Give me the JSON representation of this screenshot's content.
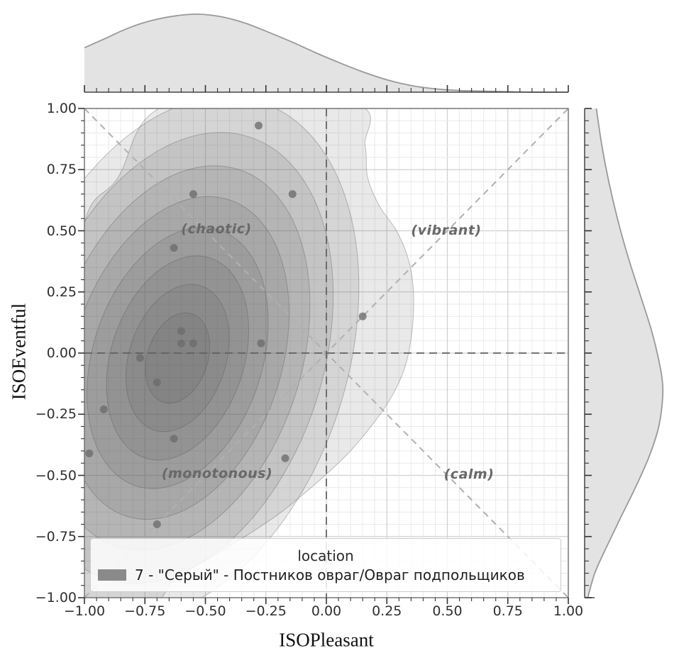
{
  "figure": {
    "x_axis": {
      "label": "ISOPleasant",
      "tick_labels": [
        "−1.00",
        "−0.75",
        "−0.50",
        "−0.25",
        "0.00",
        "0.25",
        "0.50",
        "0.75",
        "1.00"
      ],
      "tick_values": [
        -1,
        -0.75,
        -0.5,
        -0.25,
        0,
        0.25,
        0.5,
        0.75,
        1
      ],
      "range": [
        -1,
        1
      ]
    },
    "y_axis": {
      "label": "ISOEventful",
      "tick_labels": [
        "−1.00",
        "−0.75",
        "−0.50",
        "−0.25",
        "0.00",
        "0.25",
        "0.50",
        "0.75",
        "1.00"
      ],
      "tick_values": [
        -1,
        -0.75,
        -0.5,
        -0.25,
        0,
        0.25,
        0.5,
        0.75,
        1
      ],
      "range": [
        -1,
        1
      ]
    },
    "quadrant_labels": {
      "top_left": "(chaotic)",
      "top_right": "(vibrant)",
      "bottom_left": "(monotonous)",
      "bottom_right": "(calm)"
    },
    "legend": {
      "title": "location",
      "entries": [
        {
          "label": "7 - \"Серый\" - Постников овраг/Овраг подпольщиков",
          "swatch_color": "#8a8a8a"
        }
      ]
    }
  },
  "chart_data": {
    "type": "scatter",
    "subtype": "joint-kde-density-with-marginals",
    "title": "",
    "xlabel": "ISOPleasant",
    "ylabel": "ISOEventful",
    "xlim": [
      -1,
      1
    ],
    "ylim": [
      -1,
      1
    ],
    "grid": "major and minor (0.25 / 0.05 steps)",
    "legend_position": "bottom-center inside axes",
    "points": [
      [
        -0.28,
        0.93
      ],
      [
        -0.55,
        0.65
      ],
      [
        -0.14,
        0.65
      ],
      [
        -0.63,
        0.43
      ],
      [
        -0.6,
        0.09
      ],
      [
        -0.6,
        0.04
      ],
      [
        -0.55,
        0.04
      ],
      [
        -0.27,
        0.04
      ],
      [
        0.15,
        0.15
      ],
      [
        -0.77,
        -0.02
      ],
      [
        -0.7,
        -0.12
      ],
      [
        -0.92,
        -0.23
      ],
      [
        -0.63,
        -0.35
      ],
      [
        -0.98,
        -0.41
      ],
      [
        -0.17,
        -0.43
      ],
      [
        -0.7,
        -0.7
      ]
    ],
    "kde_contours": {
      "center": [
        -0.615,
        -0.02
      ],
      "rotation_deg": 18,
      "ellipse_levels_semi_axes": [
        {
          "b": 0.7,
          "a": 1.1
        },
        {
          "b": 0.6,
          "a": 0.95
        },
        {
          "b": 0.51,
          "a": 0.81
        },
        {
          "b": 0.43,
          "a": 0.68
        },
        {
          "b": 0.35,
          "a": 0.55
        },
        {
          "b": 0.275,
          "a": 0.43
        },
        {
          "b": 0.2,
          "a": 0.31
        },
        {
          "b": 0.125,
          "a": 0.19
        }
      ],
      "outer_blob": [
        [
          -0.645,
          1.02
        ],
        [
          0.11,
          1.02
        ],
        [
          0.16,
          0.85
        ],
        [
          0.17,
          0.72
        ],
        [
          0.22,
          0.6
        ],
        [
          0.29,
          0.5
        ],
        [
          0.34,
          0.38
        ],
        [
          0.36,
          0.25
        ],
        [
          0.355,
          0.1
        ],
        [
          0.33,
          -0.04
        ],
        [
          0.28,
          -0.16
        ],
        [
          0.2,
          -0.28
        ],
        [
          0.09,
          -0.41
        ],
        [
          -0.04,
          -0.53
        ],
        [
          -0.2,
          -0.66
        ],
        [
          -0.4,
          -0.79
        ],
        [
          -0.62,
          -0.92
        ],
        [
          -0.72,
          -1.02
        ],
        [
          -1.02,
          -1.02
        ],
        [
          -1.02,
          0.4
        ],
        [
          -0.86,
          0.72
        ]
      ]
    },
    "marginal_top_profile": [
      [
        -1,
        0.57
      ],
      [
        -0.92,
        0.68
      ],
      [
        -0.82,
        0.82
      ],
      [
        -0.72,
        0.92
      ],
      [
        -0.62,
        0.98
      ],
      [
        -0.53,
        1.0
      ],
      [
        -0.44,
        0.97
      ],
      [
        -0.34,
        0.89
      ],
      [
        -0.24,
        0.77
      ],
      [
        -0.14,
        0.64
      ],
      [
        -0.04,
        0.5
      ],
      [
        0.06,
        0.37
      ],
      [
        0.16,
        0.25
      ],
      [
        0.26,
        0.15
      ],
      [
        0.36,
        0.08
      ],
      [
        0.46,
        0.04
      ],
      [
        0.56,
        0.02
      ],
      [
        0.7,
        0.01
      ],
      [
        0.85,
        0.0
      ],
      [
        1.0,
        0.0
      ]
    ],
    "marginal_right_profile": [
      [
        1.0,
        0.15
      ],
      [
        0.85,
        0.22
      ],
      [
        0.7,
        0.31
      ],
      [
        0.55,
        0.42
      ],
      [
        0.4,
        0.55
      ],
      [
        0.25,
        0.7
      ],
      [
        0.1,
        0.85
      ],
      [
        0.0,
        0.93
      ],
      [
        -0.1,
        0.99
      ],
      [
        -0.18,
        1.0
      ],
      [
        -0.3,
        0.95
      ],
      [
        -0.42,
        0.83
      ],
      [
        -0.55,
        0.65
      ],
      [
        -0.68,
        0.45
      ],
      [
        -0.8,
        0.27
      ],
      [
        -0.9,
        0.13
      ],
      [
        -1.0,
        0.04
      ]
    ],
    "reference_lines": {
      "vertical_at_x": 0,
      "horizontal_at_y": 0,
      "diagonals": [
        "y = x",
        "y = -x"
      ],
      "style": "dashed"
    }
  },
  "colors": {
    "contour_fill_rgba": "rgba(88,88,88,0.13)",
    "contour_stroke": "rgba(80,80,80,0.35)",
    "point_color": "#6b6b6b",
    "marginal_fill": "#e3e3e3",
    "marginal_stroke": "#999999",
    "grid_major": "#d0d0d0",
    "grid_minor": "#eaeaea",
    "zero_line_dashed": "#606060",
    "diagonal_dashed": "#b0b0b0",
    "spine": "#6e6e6e",
    "tick": "#333333",
    "legend_swatch": "#8a8a8a"
  }
}
